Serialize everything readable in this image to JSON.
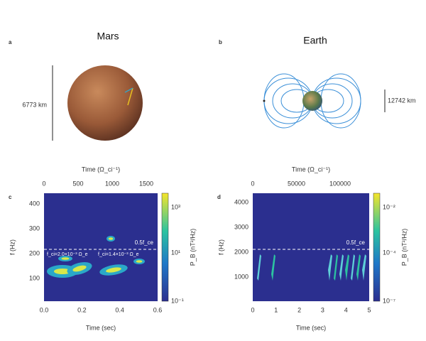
{
  "panels": [
    {
      "label": "a",
      "title": "Mars",
      "scale": "6773 km"
    },
    {
      "label": "b",
      "title": "Earth",
      "scale": "12742 km"
    },
    {
      "label": "c",
      "top_axis": "Time (Ω_ci⁻¹)",
      "top_ticks": [
        "0",
        "500",
        "1000",
        "1500"
      ],
      "y_axis": "f (Hz)",
      "y_ticks": [
        "100",
        "200",
        "300",
        "400"
      ],
      "x_axis": "Time (sec)",
      "x_ticks": [
        "0.0",
        "0.2",
        "0.4",
        "0.6"
      ],
      "line_label": "0.5f_ce",
      "annotations": [
        "f_ci=2.0×10⁻³ Ω_e",
        "f_ci=1.4×10⁻³ Ω_e"
      ],
      "colorbar_label": "P_B (nT²/Hz)",
      "colorbar_ticks": [
        "10⁻¹",
        "10¹",
        "10³"
      ]
    },
    {
      "label": "d",
      "top_axis": "Time (Ω_ci⁻¹)",
      "top_ticks": [
        "0",
        "50000",
        "100000"
      ],
      "y_axis": "f (Hz)",
      "y_ticks": [
        "1000",
        "2000",
        "3000",
        "4000"
      ],
      "x_axis": "Time (sec)",
      "x_ticks": [
        "0",
        "1",
        "2",
        "3",
        "4",
        "5"
      ],
      "line_label": "0.5f_ce",
      "annotations": [],
      "colorbar_label": "P_B (nT²/Hz)",
      "colorbar_ticks": [
        "10⁻⁷",
        "10⁻⁴",
        "10⁻²"
      ]
    }
  ]
}
